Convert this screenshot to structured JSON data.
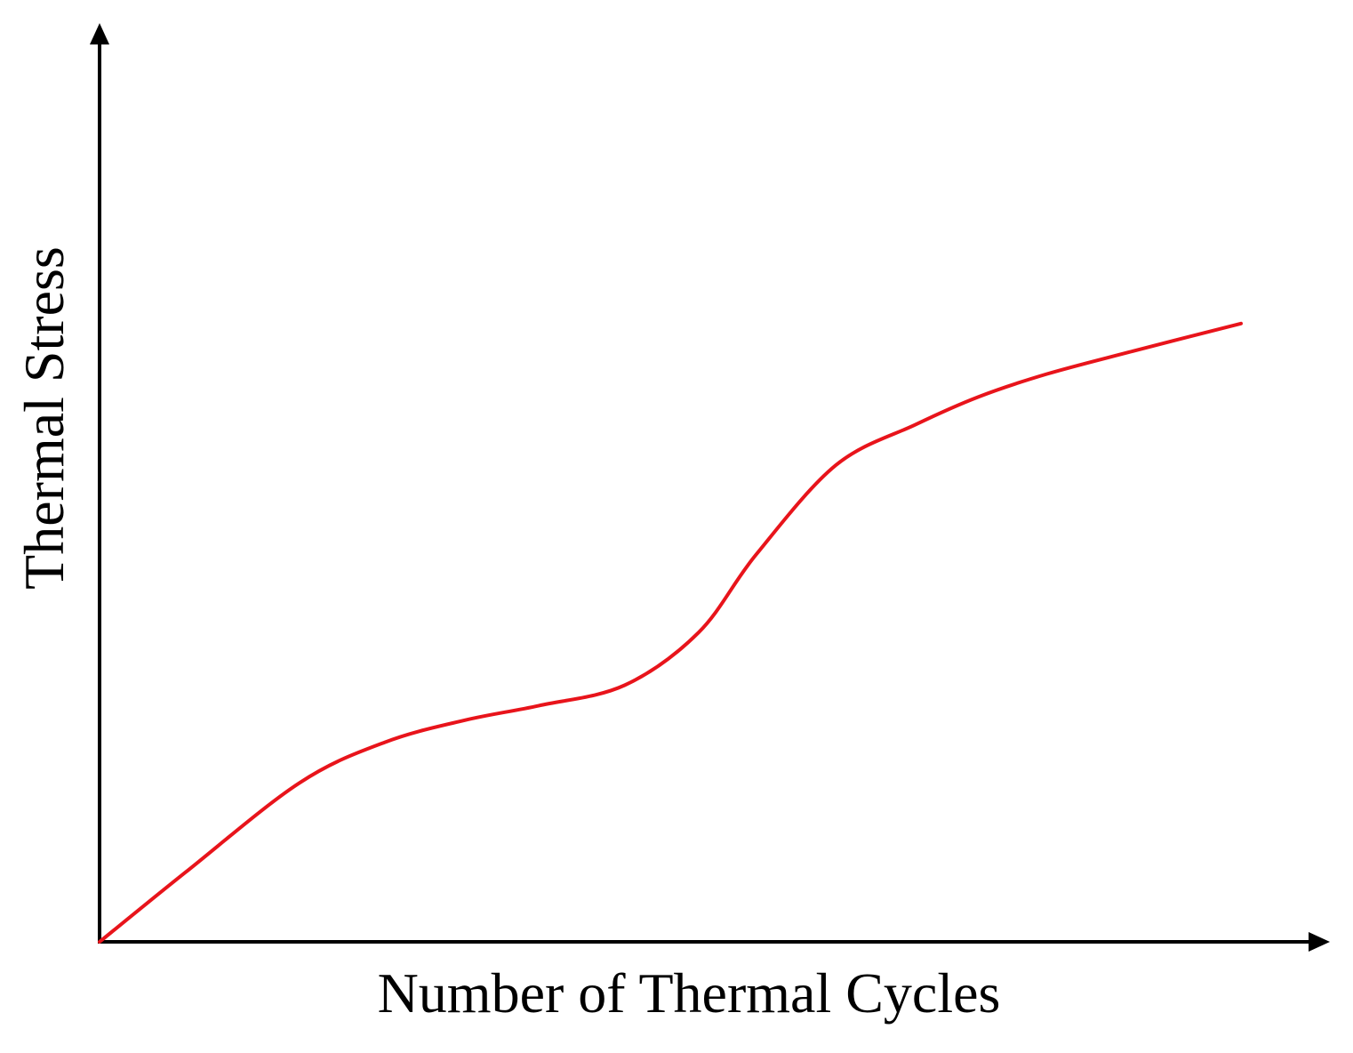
{
  "chart_data": {
    "type": "line",
    "title": "",
    "xlabel": "Number of Thermal Cycles",
    "ylabel": "Thermal Stress",
    "xlim": [
      0,
      100
    ],
    "ylim": [
      0,
      100
    ],
    "grid": false,
    "legend": "none",
    "axis_arrows": true,
    "series": [
      {
        "color": "#e8141b",
        "x": [
          0,
          7.5,
          17.5,
          25,
          32,
          38.5,
          46,
          52.5,
          57.5,
          64.5,
          71.5,
          77,
          83,
          90.5,
          100
        ],
        "y": [
          0,
          8.5,
          19.5,
          24.5,
          27.2,
          29,
          31.5,
          38,
          47.5,
          58.5,
          63.5,
          66.9,
          69.7,
          72.5,
          75.9
        ]
      }
    ],
    "colors": {
      "axis": "#000000",
      "line": "#e8141b",
      "background": "#ffffff"
    }
  }
}
